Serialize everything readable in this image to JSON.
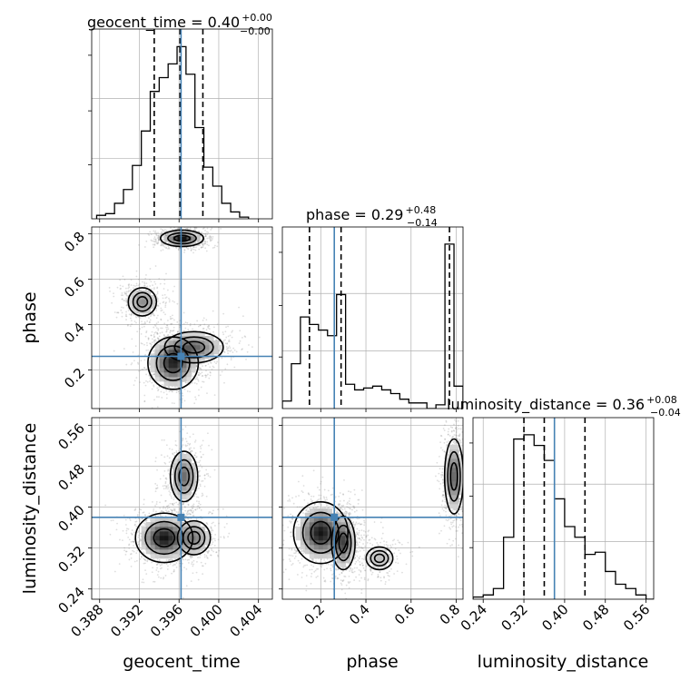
{
  "chart_data": {
    "type": "corner",
    "parameters": [
      "geocent_time",
      "phase",
      "luminosity_distance"
    ],
    "truth": {
      "geocent_time": 0.3962,
      "phase": 0.26,
      "luminosity_distance": 0.38
    },
    "colors": {
      "truth": "#4682b4",
      "hist": "#000000",
      "grid": "#b0b0b0",
      "density": "#222222"
    },
    "grid": true,
    "titles": [
      {
        "main": "geocent_time = 0.40",
        "sup": "+0.00",
        "sub": "−0.00"
      },
      {
        "main": "phase = 0.29",
        "sup": "+0.48",
        "sub": "−0.14"
      },
      {
        "main": "luminosity_distance = 0.36",
        "sup": "+0.08",
        "sub": "−0.04"
      }
    ],
    "axis_labels": {
      "x": [
        "geocent_time",
        "phase",
        "luminosity_distance"
      ],
      "y_phase": "phase",
      "y_luminosity_distance": "luminosity_distance"
    },
    "axes": {
      "geocent_time": {
        "range": [
          0.3872,
          0.4054
        ],
        "ticks": [
          "0.388",
          "0.392",
          "0.396",
          "0.400",
          "0.404"
        ]
      },
      "phase": {
        "range": [
          0.03,
          0.83
        ],
        "ticks_x": [
          "0.2",
          "0.4",
          "0.6",
          "0.8"
        ],
        "ticks_y": [
          "0.2",
          "0.4",
          "0.6",
          "0.8"
        ]
      },
      "luminosity_distance": {
        "range": [
          0.22,
          0.575
        ],
        "ticks": [
          "0.24",
          "0.32",
          "0.40",
          "0.48",
          "0.56"
        ]
      }
    },
    "quantiles": {
      "geocent_time": [
        0.3935,
        0.3961,
        0.3984
      ],
      "phase": [
        0.15,
        0.29,
        0.77
      ],
      "luminosity_distance": [
        0.32,
        0.36,
        0.44
      ]
    },
    "histograms": {
      "geocent_time": {
        "edges": [
          0.3877,
          0.3886,
          0.3895,
          0.3904,
          0.3913,
          0.3922,
          0.3931,
          0.394,
          0.3949,
          0.3958,
          0.3967,
          0.3976,
          0.3985,
          0.3994,
          0.4003,
          0.4012,
          0.4021,
          0.403
        ],
        "counts": [
          2,
          3,
          9,
          17,
          31,
          51,
          74,
          82,
          90,
          100,
          84,
          53,
          30,
          19,
          9,
          4,
          1
        ]
      },
      "phase": {
        "edges": [
          0.03,
          0.07,
          0.11,
          0.15,
          0.19,
          0.23,
          0.27,
          0.31,
          0.35,
          0.39,
          0.43,
          0.47,
          0.51,
          0.55,
          0.59,
          0.63,
          0.67,
          0.71,
          0.75,
          0.79,
          0.83
        ],
        "counts": [
          4,
          24,
          49,
          45,
          42,
          39,
          61,
          13,
          10,
          11,
          12,
          10,
          8,
          5,
          3,
          3,
          0,
          2,
          88,
          12
        ]
      },
      "luminosity_distance": {
        "edges": [
          0.22,
          0.24,
          0.26,
          0.28,
          0.3,
          0.32,
          0.34,
          0.36,
          0.38,
          0.4,
          0.42,
          0.44,
          0.46,
          0.48,
          0.5,
          0.52,
          0.54,
          0.56,
          0.575
        ],
        "counts": [
          1,
          2,
          5,
          29,
          75,
          77,
          72,
          65,
          47,
          34,
          29,
          21,
          22,
          13,
          7,
          5,
          2,
          0
        ]
      }
    },
    "joint_modes": {
      "phase_vs_geocent_time": [
        {
          "x": 0.3963,
          "y": 0.78,
          "sx": 0.0009,
          "sy": 0.015,
          "w": 1.0
        },
        {
          "x": 0.3954,
          "y": 0.23,
          "sx": 0.0011,
          "sy": 0.05,
          "w": 0.9
        },
        {
          "x": 0.3975,
          "y": 0.3,
          "sx": 0.0015,
          "sy": 0.035,
          "w": 0.6
        },
        {
          "x": 0.3923,
          "y": 0.5,
          "sx": 0.0008,
          "sy": 0.035,
          "w": 0.45
        }
      ],
      "luminosity_distance_vs_geocent_time": [
        {
          "x": 0.3945,
          "y": 0.34,
          "sx": 0.0012,
          "sy": 0.02,
          "w": 1.0
        },
        {
          "x": 0.3965,
          "y": 0.46,
          "sx": 0.0007,
          "sy": 0.025,
          "w": 0.6
        },
        {
          "x": 0.3975,
          "y": 0.34,
          "sx": 0.0009,
          "sy": 0.018,
          "w": 0.5
        }
      ],
      "luminosity_distance_vs_phase": [
        {
          "x": 0.2,
          "y": 0.35,
          "sx": 0.05,
          "sy": 0.025,
          "w": 1.0
        },
        {
          "x": 0.3,
          "y": 0.33,
          "sx": 0.025,
          "sy": 0.025,
          "w": 0.7
        },
        {
          "x": 0.79,
          "y": 0.46,
          "sx": 0.02,
          "sy": 0.035,
          "w": 0.7
        },
        {
          "x": 0.46,
          "y": 0.3,
          "sx": 0.04,
          "sy": 0.015,
          "w": 0.25
        }
      ]
    }
  }
}
